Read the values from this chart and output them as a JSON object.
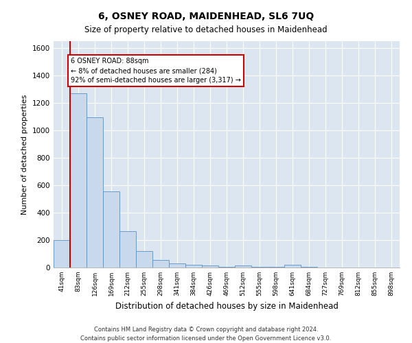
{
  "title": "6, OSNEY ROAD, MAIDENHEAD, SL6 7UQ",
  "subtitle": "Size of property relative to detached houses in Maidenhead",
  "xlabel": "Distribution of detached houses by size in Maidenhead",
  "ylabel": "Number of detached properties",
  "categories": [
    "41sqm",
    "83sqm",
    "126sqm",
    "169sqm",
    "212sqm",
    "255sqm",
    "298sqm",
    "341sqm",
    "384sqm",
    "426sqm",
    "469sqm",
    "512sqm",
    "555sqm",
    "598sqm",
    "641sqm",
    "684sqm",
    "727sqm",
    "769sqm",
    "812sqm",
    "855sqm",
    "898sqm"
  ],
  "values": [
    200,
    1270,
    1095,
    555,
    265,
    120,
    57,
    30,
    20,
    15,
    3,
    15,
    3,
    3,
    20,
    3,
    0,
    0,
    0,
    0,
    0
  ],
  "bar_color": "#c9d9ed",
  "bar_edge_color": "#5a8fc2",
  "vline_x_index": 1,
  "vline_color": "#cc0000",
  "annotation_text": "6 OSNEY ROAD: 88sqm\n← 8% of detached houses are smaller (284)\n92% of semi-detached houses are larger (3,317) →",
  "annotation_box_color": "#ffffff",
  "annotation_box_edge_color": "#cc0000",
  "ylim": [
    0,
    1650
  ],
  "yticks": [
    0,
    200,
    400,
    600,
    800,
    1000,
    1200,
    1400,
    1600
  ],
  "background_color": "#dce6f1",
  "footer_line1": "Contains HM Land Registry data © Crown copyright and database right 2024.",
  "footer_line2": "Contains public sector information licensed under the Open Government Licence v3.0."
}
